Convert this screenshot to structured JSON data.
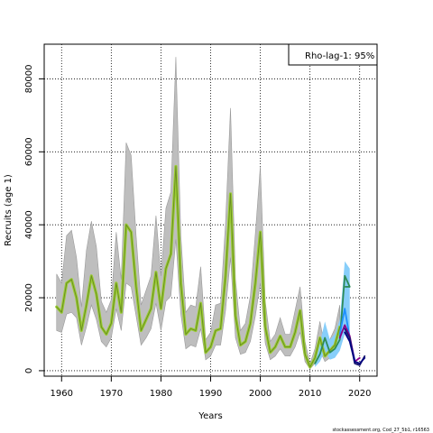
{
  "chart_data": {
    "type": "line",
    "title": "",
    "xlabel": "Years",
    "ylabel": "Recruits (age 1)",
    "xlim": [
      1956.5,
      2023.5
    ],
    "ylim": [
      -1500,
      89500
    ],
    "xticks": [
      1960,
      1970,
      1980,
      1990,
      2000,
      2010,
      2020
    ],
    "yticks": [
      0,
      20000,
      40000,
      60000,
      80000
    ],
    "grid": true,
    "legend": {
      "text": "Rho-lag-1: 95%",
      "placement": "top-right"
    },
    "credit": "stockassessment.org, Cod_27_5b1, r16563",
    "colors": {
      "band": "#bebebe",
      "band_edge": "#9a9a9a",
      "olive": "#9acd32",
      "olive_core": "#6b8e23",
      "peel_band": "#87cefa",
      "peel_lines": [
        "#2e8b57",
        "#1e90ff",
        "#8b008b",
        "#191970",
        "#000080"
      ]
    },
    "series": [
      {
        "name": "",
        "x": [
          1959,
          1960,
          1961,
          1962,
          1963,
          1964,
          1965,
          1966,
          1967,
          1968,
          1969,
          1970,
          1971,
          1972,
          1973,
          1974,
          1975,
          1976,
          1977,
          1978,
          1979,
          1980,
          1981,
          1982,
          1983,
          1984,
          1985,
          1986,
          1987,
          1988,
          1989,
          1990,
          1991,
          1992,
          1993,
          1994,
          1995,
          1996,
          1997,
          1998,
          1999,
          2000,
          2001,
          2002,
          2003,
          2004,
          2005,
          2006,
          2007,
          2008,
          2009,
          2010,
          2011,
          2012,
          2013,
          2014,
          2015,
          2016
        ],
        "y": [
          17500,
          16000,
          24000,
          25000,
          20000,
          11000,
          18000,
          26000,
          21000,
          12000,
          10000,
          13000,
          24000,
          16000,
          40000,
          38000,
          23000,
          11000,
          14000,
          17000,
          27000,
          17000,
          28000,
          32000,
          56000,
          24000,
          10000,
          11500,
          11000,
          18500,
          5000,
          6500,
          11000,
          11500,
          26000,
          48500,
          15000,
          7000,
          8000,
          13000,
          24000,
          38000,
          12000,
          5000,
          6500,
          9500,
          6500,
          6500,
          10500,
          16500,
          4500,
          1000,
          3500,
          9000,
          4000,
          5500,
          7000,
          12000
        ],
        "lower": [
          11000,
          10500,
          15500,
          16000,
          14500,
          7000,
          12000,
          18000,
          14000,
          8000,
          6500,
          9000,
          17000,
          11000,
          24000,
          23000,
          15000,
          7000,
          9000,
          11500,
          18500,
          11000,
          19000,
          20500,
          36000,
          15500,
          6000,
          7000,
          6500,
          11500,
          3000,
          4000,
          7000,
          7000,
          16500,
          31000,
          9000,
          4500,
          5000,
          8000,
          15000,
          24000,
          7500,
          3000,
          4000,
          6000,
          4000,
          4000,
          6500,
          10500,
          2500,
          500,
          2000,
          5500,
          2500,
          3500,
          4500,
          7500
        ],
        "upper": [
          26500,
          24000,
          37000,
          38500,
          31000,
          17500,
          33000,
          41000,
          34000,
          19000,
          16000,
          19500,
          38000,
          25000,
          62500,
          59000,
          37000,
          18000,
          22000,
          26000,
          42500,
          26000,
          44500,
          49000,
          86000,
          37000,
          16000,
          18000,
          17500,
          28500,
          8500,
          10500,
          18000,
          18500,
          40500,
          72000,
          25000,
          11000,
          13000,
          20500,
          37500,
          56000,
          19000,
          8000,
          10000,
          14500,
          10000,
          10000,
          16500,
          23000,
          8000,
          2000,
          6000,
          13500,
          6500,
          8500,
          11500,
          18000
        ]
      },
      {
        "name": "",
        "x": [
          2011,
          2012,
          2013,
          2014,
          2015,
          2016,
          2017,
          2018
        ],
        "y": [
          2000,
          4500,
          9000,
          5000,
          6000,
          8500,
          26000,
          23000
        ],
        "lower": [
          1000,
          2500,
          5500,
          3000,
          3500,
          5500,
          10000,
          9000
        ],
        "upper": [
          3500,
          7500,
          13500,
          8500,
          10000,
          14000,
          30000,
          28000
        ]
      },
      {
        "name": "",
        "x": [
          2016,
          2017,
          2018,
          2019
        ],
        "y": [
          10000,
          17000,
          9000,
          3000
        ]
      },
      {
        "name": "",
        "x": [
          2016,
          2017,
          2018,
          2019,
          2020
        ],
        "y": [
          9000,
          12500,
          9500,
          2500,
          3500
        ]
      },
      {
        "name": "",
        "x": [
          2017,
          2018,
          2019,
          2020,
          2021
        ],
        "y": [
          11500,
          9000,
          2000,
          1500,
          4000
        ]
      },
      {
        "name": "",
        "x": [
          2017,
          2018,
          2019,
          2020,
          2021
        ],
        "y": [
          10500,
          8000,
          2500,
          2000,
          3500
        ]
      }
    ]
  }
}
